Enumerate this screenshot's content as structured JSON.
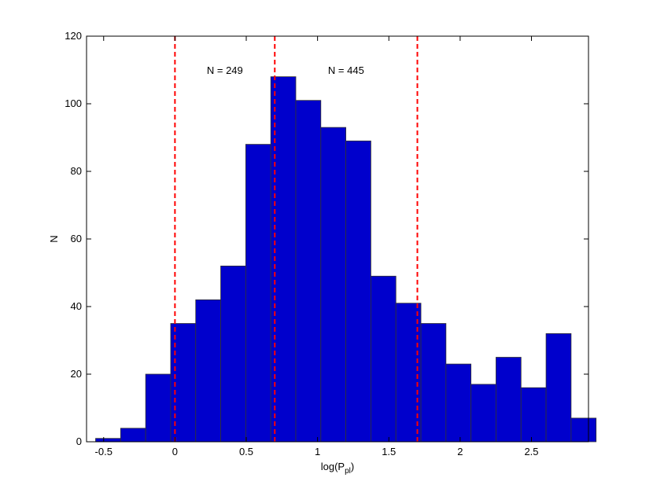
{
  "chart_data": {
    "type": "bar",
    "subtype": "histogram",
    "xlabel": "log(P",
    "xlabel_sub": "pl",
    "xlabel_close": ")",
    "ylabel": "N",
    "xlim": [
      -0.62,
      2.9
    ],
    "ylim": [
      0,
      120
    ],
    "xticks": [
      -0.5,
      0,
      0.5,
      1,
      1.5,
      2,
      2.5
    ],
    "xtick_labels": [
      "-0.5",
      "0",
      "0.5",
      "1",
      "1.5",
      "2",
      "2.5"
    ],
    "yticks": [
      0,
      20,
      40,
      60,
      80,
      100,
      120
    ],
    "ytick_labels": [
      "0",
      "20",
      "40",
      "60",
      "80",
      "100",
      "120"
    ],
    "bin_width": 0.1755,
    "bin_start": -0.5565,
    "values": [
      1,
      4,
      20,
      35,
      42,
      52,
      88,
      108,
      101,
      93,
      89,
      49,
      41,
      35,
      23,
      17,
      25,
      16,
      32,
      7
    ],
    "bar_color": "#0000cc",
    "bar_edge_color": "#333333",
    "vlines": [
      0,
      0.7,
      1.7
    ],
    "vline_color": "#ff0000",
    "annotations": [
      {
        "text": "N = 249",
        "x": 0.35,
        "y": 110
      },
      {
        "text": "N = 445",
        "x": 1.2,
        "y": 110
      }
    ],
    "grid": false,
    "legend": "none"
  }
}
